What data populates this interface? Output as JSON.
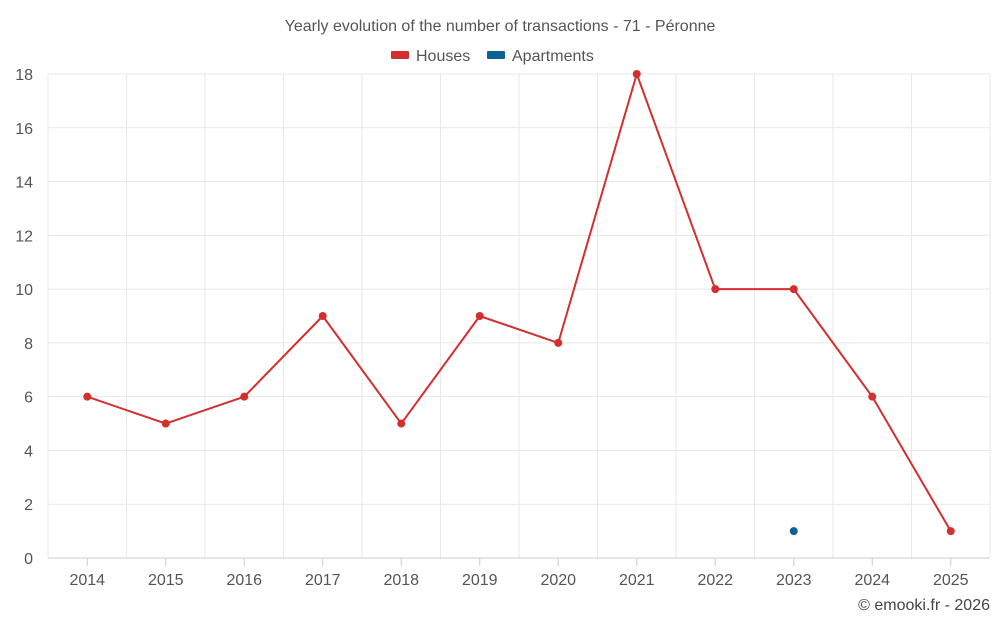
{
  "chart_data": {
    "type": "line",
    "title": "Yearly evolution of the number of transactions - 71 - Péronne",
    "categories": [
      "2014",
      "2015",
      "2016",
      "2017",
      "2018",
      "2019",
      "2020",
      "2021",
      "2022",
      "2023",
      "2024",
      "2025"
    ],
    "series": [
      {
        "name": "Houses",
        "color": "#d32f2f",
        "values": [
          6,
          5,
          6,
          9,
          5,
          9,
          8,
          18,
          10,
          10,
          6,
          1
        ]
      },
      {
        "name": "Apartments",
        "color": "#0d6196",
        "values": [
          null,
          null,
          null,
          null,
          null,
          null,
          null,
          null,
          null,
          1,
          null,
          null
        ]
      }
    ],
    "ylim": [
      0,
      18
    ],
    "yticks": [
      0,
      2,
      4,
      6,
      8,
      10,
      12,
      14,
      16,
      18
    ],
    "xlabel": "",
    "ylabel": "",
    "legend_position": "top-center",
    "grid": true
  },
  "credit": "© emooki.fr - 2026"
}
